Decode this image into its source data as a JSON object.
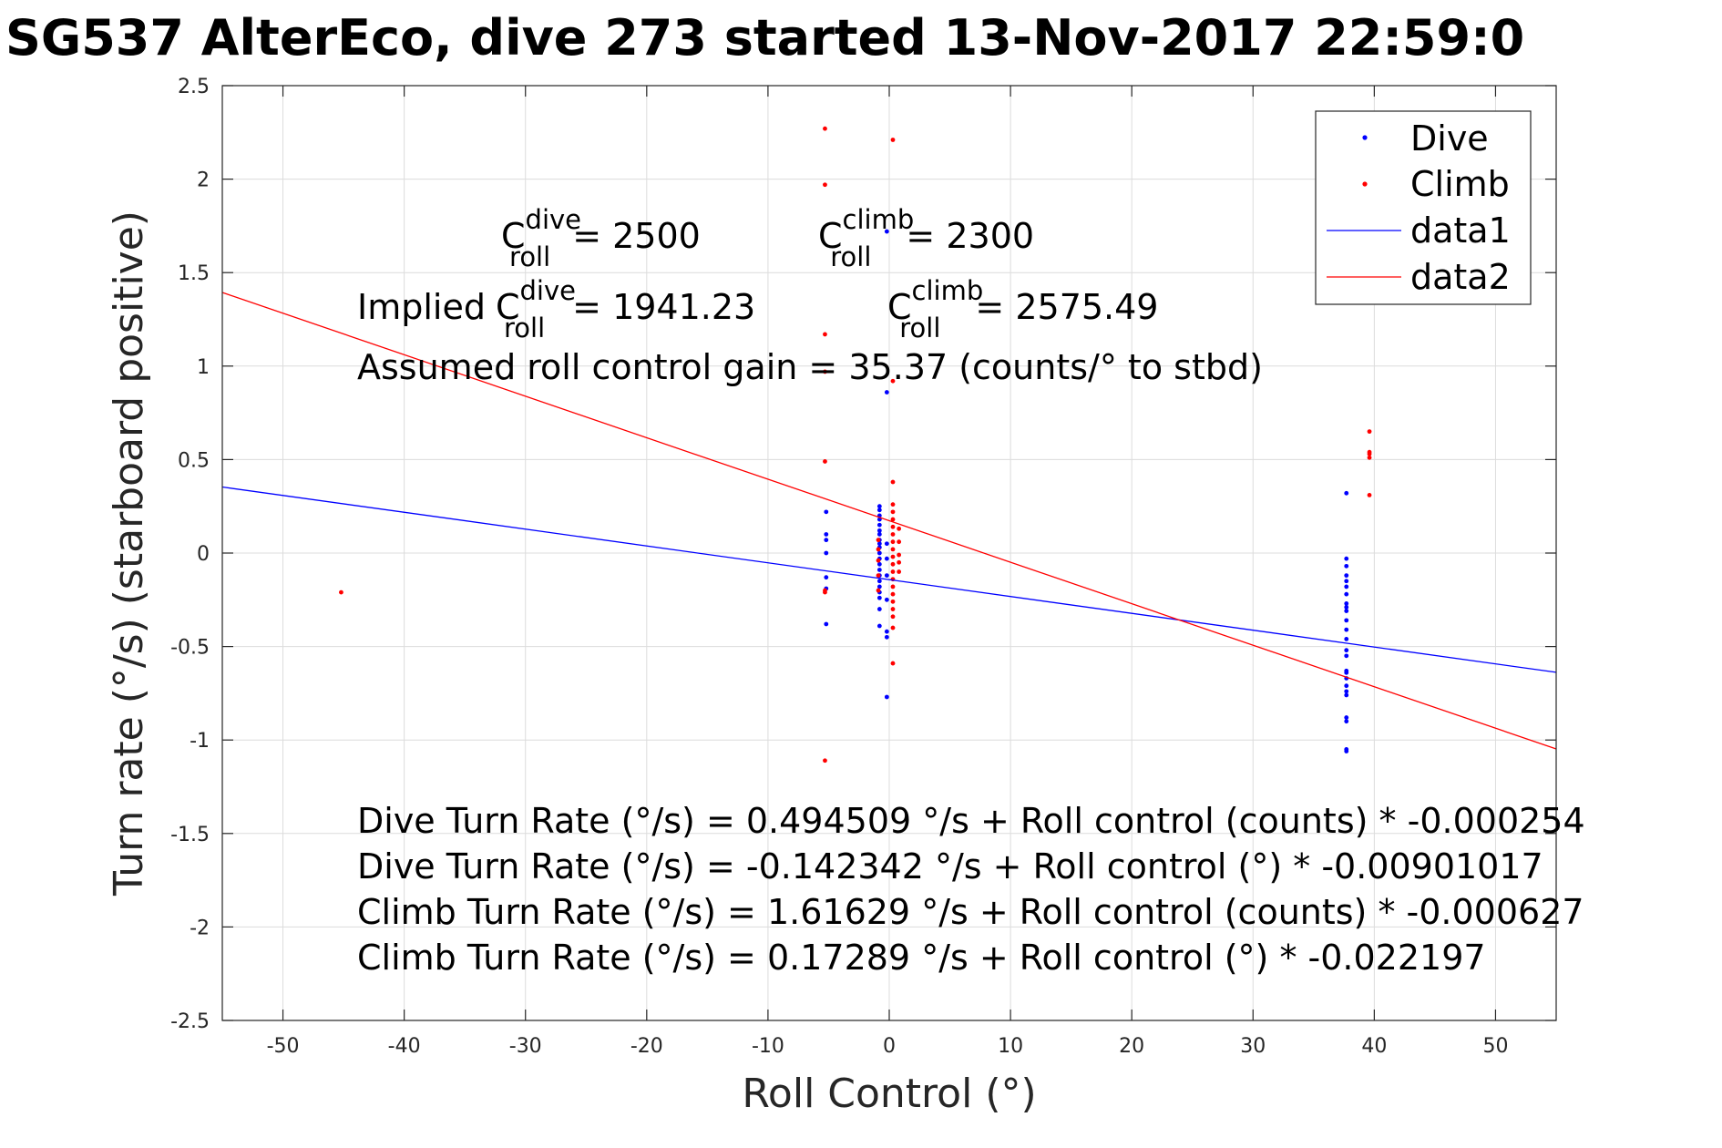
{
  "chart_data": {
    "type": "scatter",
    "title": "SG537 AlterEco, dive 273 started 13-Nov-2017 22:59:0",
    "xlabel": "Roll Control (°)",
    "ylabel": "Turn rate (°/s) (starboard positive)",
    "xlim": [
      -55,
      55
    ],
    "ylim": [
      -2.5,
      2.5
    ],
    "xticks": [
      -50,
      -40,
      -30,
      -20,
      -10,
      0,
      10,
      20,
      30,
      40,
      50
    ],
    "yticks": [
      -2.5,
      -2,
      -1.5,
      -1,
      -0.5,
      0,
      0.5,
      1,
      1.5,
      2,
      2.5
    ],
    "grid": true,
    "legend_position": "top-right",
    "series": [
      {
        "name": "Dive",
        "kind": "points",
        "color": "#0000ff",
        "points": [
          [
            -5.2,
            0.22
          ],
          [
            -5.2,
            0.1
          ],
          [
            -5.2,
            0.07
          ],
          [
            -5.2,
            0.0
          ],
          [
            -5.2,
            -0.13
          ],
          [
            -5.2,
            -0.19
          ],
          [
            -5.2,
            -0.38
          ],
          [
            -0.8,
            0.25
          ],
          [
            -0.8,
            0.23
          ],
          [
            -0.8,
            0.2
          ],
          [
            -0.8,
            0.18
          ],
          [
            -0.8,
            0.15
          ],
          [
            -0.8,
            0.12
          ],
          [
            -0.8,
            0.1
          ],
          [
            -0.8,
            0.07
          ],
          [
            -0.8,
            0.05
          ],
          [
            -0.8,
            0.03
          ],
          [
            -0.8,
            0.0
          ],
          [
            -0.8,
            -0.03
          ],
          [
            -0.8,
            -0.06
          ],
          [
            -0.8,
            -0.09
          ],
          [
            -0.8,
            -0.12
          ],
          [
            -0.8,
            -0.15
          ],
          [
            -0.8,
            -0.18
          ],
          [
            -0.8,
            -0.21
          ],
          [
            -0.8,
            -0.24
          ],
          [
            -0.8,
            -0.3
          ],
          [
            -0.8,
            -0.39
          ],
          [
            -0.2,
            1.72
          ],
          [
            -0.2,
            0.86
          ],
          [
            -0.2,
            0.05
          ],
          [
            -0.2,
            -0.03
          ],
          [
            -0.2,
            -0.12
          ],
          [
            -0.2,
            -0.25
          ],
          [
            -0.2,
            -0.42
          ],
          [
            -0.2,
            -0.45
          ],
          [
            -0.2,
            -0.77
          ],
          [
            37.7,
            0.32
          ],
          [
            37.7,
            -0.03
          ],
          [
            37.7,
            -0.07
          ],
          [
            37.7,
            -0.12
          ],
          [
            37.7,
            -0.15
          ],
          [
            37.7,
            -0.18
          ],
          [
            37.7,
            -0.22
          ],
          [
            37.7,
            -0.27
          ],
          [
            37.7,
            -0.29
          ],
          [
            37.7,
            -0.31
          ],
          [
            37.7,
            -0.36
          ],
          [
            37.7,
            -0.41
          ],
          [
            37.7,
            -0.46
          ],
          [
            37.7,
            -0.52
          ],
          [
            37.7,
            -0.55
          ],
          [
            37.7,
            -0.63
          ],
          [
            37.7,
            -0.64
          ],
          [
            37.7,
            -0.67
          ],
          [
            37.7,
            -0.71
          ],
          [
            37.7,
            -0.74
          ],
          [
            37.7,
            -0.76
          ],
          [
            37.7,
            -0.88
          ],
          [
            37.7,
            -0.9
          ],
          [
            37.7,
            -1.05
          ],
          [
            37.7,
            -1.06
          ]
        ]
      },
      {
        "name": "Climb",
        "kind": "points",
        "color": "#ff0000",
        "points": [
          [
            -45.2,
            -0.21
          ],
          [
            -5.3,
            2.27
          ],
          [
            -5.3,
            1.97
          ],
          [
            -5.3,
            1.17
          ],
          [
            -5.3,
            0.97
          ],
          [
            -5.3,
            0.49
          ],
          [
            -5.3,
            -0.2
          ],
          [
            -5.3,
            -0.21
          ],
          [
            -5.3,
            -1.11
          ],
          [
            -0.9,
            0.07
          ],
          [
            -0.9,
            0.02
          ],
          [
            -0.9,
            -0.04
          ],
          [
            -0.9,
            -0.12
          ],
          [
            -0.9,
            -0.2
          ],
          [
            0.3,
            2.21
          ],
          [
            0.3,
            0.92
          ],
          [
            0.3,
            0.38
          ],
          [
            0.3,
            0.26
          ],
          [
            0.3,
            0.22
          ],
          [
            0.3,
            0.18
          ],
          [
            0.3,
            0.14
          ],
          [
            0.3,
            0.1
          ],
          [
            0.3,
            0.06
          ],
          [
            0.3,
            0.02
          ],
          [
            0.3,
            -0.02
          ],
          [
            0.3,
            -0.06
          ],
          [
            0.3,
            -0.1
          ],
          [
            0.3,
            -0.14
          ],
          [
            0.3,
            -0.18
          ],
          [
            0.3,
            -0.22
          ],
          [
            0.3,
            -0.26
          ],
          [
            0.3,
            -0.3
          ],
          [
            0.3,
            -0.34
          ],
          [
            0.3,
            -0.4
          ],
          [
            0.3,
            -0.59
          ],
          [
            0.8,
            0.13
          ],
          [
            0.8,
            0.06
          ],
          [
            0.8,
            -0.01
          ],
          [
            0.8,
            -0.05
          ],
          [
            0.8,
            -0.1
          ],
          [
            39.6,
            0.65
          ],
          [
            39.6,
            0.54
          ],
          [
            39.6,
            0.53
          ],
          [
            39.6,
            0.51
          ],
          [
            39.6,
            0.31
          ]
        ]
      },
      {
        "name": "data1",
        "kind": "line",
        "color": "#0000ff",
        "x": [
          -55,
          55
        ],
        "y": [
          0.353217,
          -0.637901
        ]
      },
      {
        "name": "data2",
        "kind": "line",
        "color": "#ff0000",
        "x": [
          -55,
          55
        ],
        "y": [
          1.393725,
          -1.047945
        ]
      }
    ],
    "annotations": {
      "c_roll_dive": {
        "base": "C",
        "sup": "dive",
        "sub": "roll",
        "value": "= 2500"
      },
      "c_roll_climb": {
        "base": "C",
        "sup": "climb",
        "sub": "roll",
        "value": "= 2300"
      },
      "implied_prefix": "Implied",
      "implied_dive": {
        "base": "C",
        "sup": "dive",
        "sub": "roll",
        "value": "= 1941.23"
      },
      "implied_climb": {
        "base": "C",
        "sup": "climb",
        "sub": "roll",
        "value": "= 2575.49"
      },
      "gain_line": "Assumed roll control gain = 35.37 (counts/° to stbd)",
      "fit_lines": [
        "Dive Turn Rate (°/s) = 0.494509 °/s + Roll control (counts) * -0.000254",
        "Dive Turn Rate (°/s) = -0.142342 °/s + Roll control (°) * -0.00901017",
        "Climb Turn Rate (°/s) = 1.61629 °/s + Roll control (counts) * -0.000627",
        "Climb Turn Rate (°/s) = 0.17289 °/s + Roll control (°) * -0.022197"
      ]
    }
  }
}
